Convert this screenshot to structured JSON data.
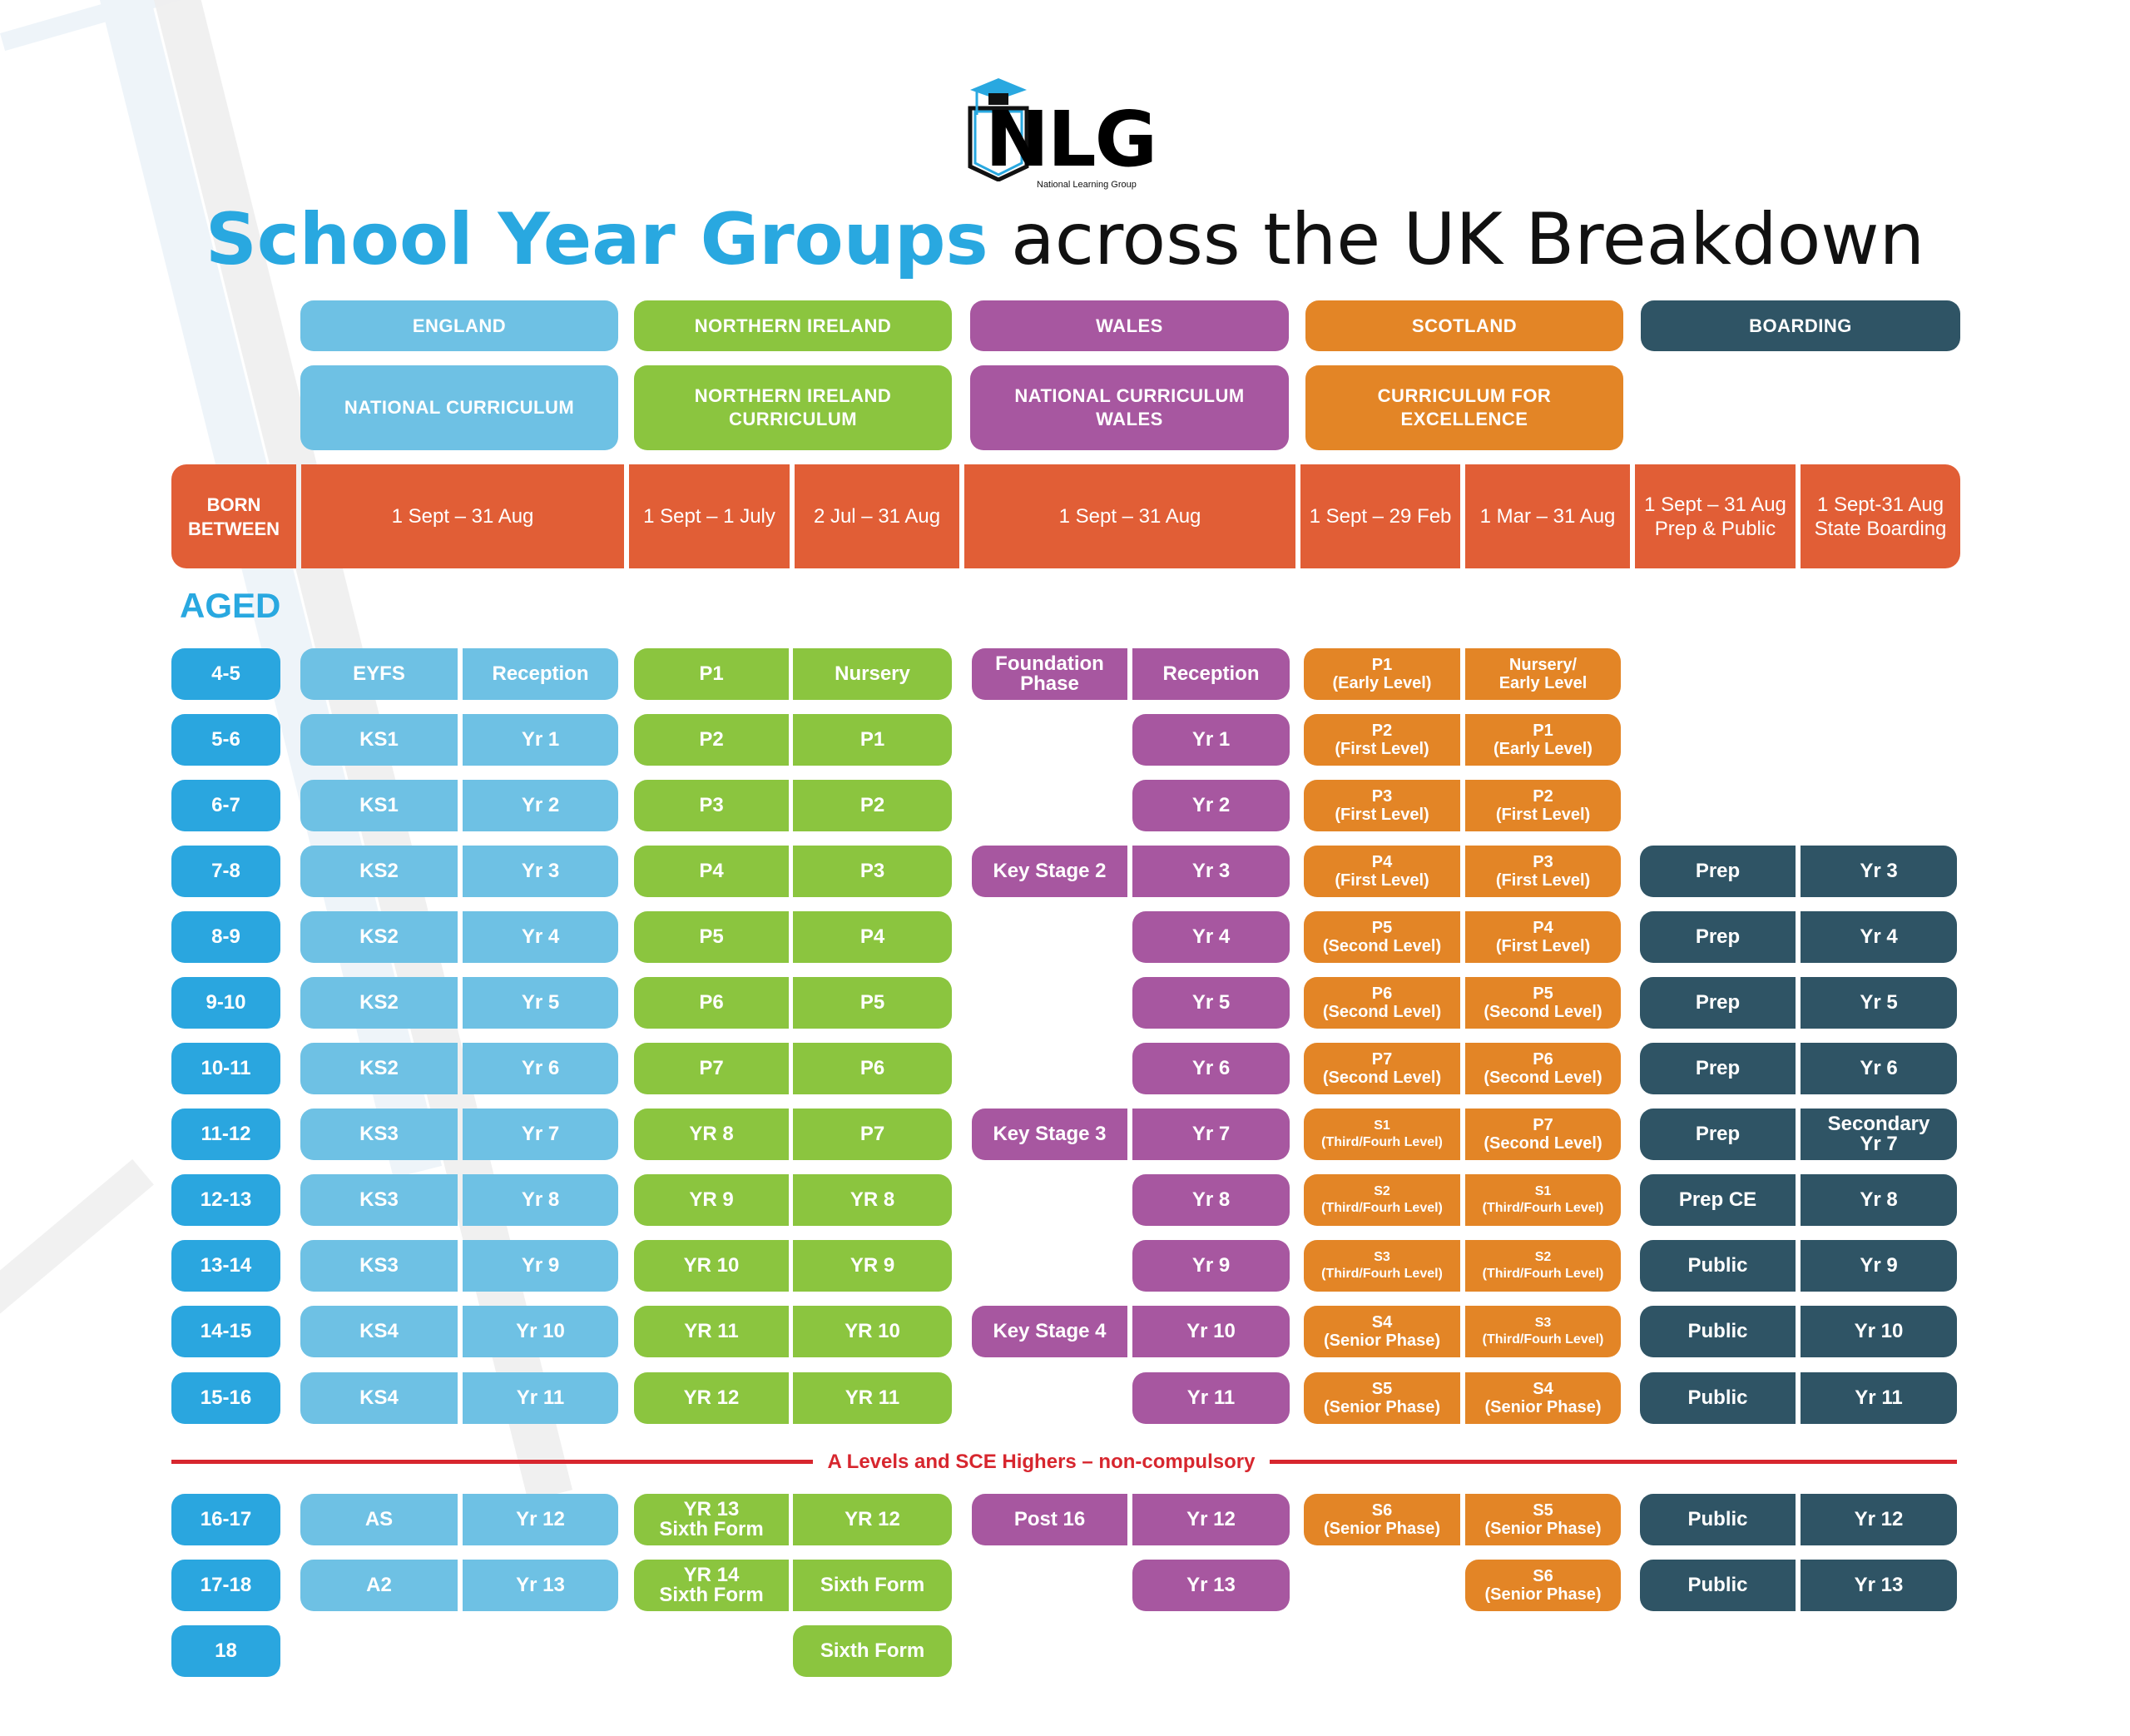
{
  "logo": {
    "word": "NLG",
    "subtitle": "National Learning Group"
  },
  "title": {
    "highlight": "School Year Groups",
    "rest": " across the UK Breakdown"
  },
  "regions": [
    {
      "name": "ENGLAND",
      "curriculum": "NATIONAL CURRICULUM",
      "color": "#6EC1E4"
    },
    {
      "name": "NORTHERN IRELAND",
      "curriculum": "NORTHERN IRELAND\nCURRICULUM",
      "color": "#8BC53F"
    },
    {
      "name": "WALES",
      "curriculum": "NATIONAL CURRICULUM\nWALES",
      "color": "#A757A0"
    },
    {
      "name": "SCOTLAND",
      "curriculum": "CURRICULUM FOR\nEXCELLENCE",
      "color": "#E38526"
    },
    {
      "name": "BOARDING",
      "curriculum": "",
      "color": "#2F5465"
    }
  ],
  "born_between": {
    "label": "BORN\nBETWEEN",
    "ranges": [
      "1 Sept – 31 Aug",
      "1 Sept – 1 July",
      "2 Jul – 31 Aug",
      "1 Sept – 31 Aug",
      "1 Sept – 29 Feb",
      "1 Mar – 31 Aug",
      "1 Sept – 31 Aug\nPrep & Public",
      "1 Sept-31 Aug\nState Boarding"
    ],
    "color": "#E15E36"
  },
  "aged_label": "AGED",
  "divider": {
    "label": "A Levels and SCE Highers – non-compulsory",
    "color": "#D7262E"
  },
  "rows": [
    {
      "age": "4-5",
      "eng": [
        "EYFS",
        "Reception"
      ],
      "ni": [
        "P1",
        "Nursery"
      ],
      "wal": [
        "Foundation\nPhase",
        "Reception"
      ],
      "sco": [
        "P1\n(Early Level)",
        "Nursery/\nEarly Level"
      ],
      "brd": [
        "",
        ""
      ]
    },
    {
      "age": "5-6",
      "eng": [
        "KS1",
        "Yr 1"
      ],
      "ni": [
        "P2",
        "P1"
      ],
      "wal": [
        "",
        "Yr 1"
      ],
      "sco": [
        "P2\n(First Level)",
        "P1\n(Early Level)"
      ],
      "brd": [
        "",
        ""
      ]
    },
    {
      "age": "6-7",
      "eng": [
        "KS1",
        "Yr 2"
      ],
      "ni": [
        "P3",
        "P2"
      ],
      "wal": [
        "",
        "Yr 2"
      ],
      "sco": [
        "P3\n(First Level)",
        "P2\n(First Level)"
      ],
      "brd": [
        "",
        ""
      ]
    },
    {
      "age": "7-8",
      "eng": [
        "KS2",
        "Yr 3"
      ],
      "ni": [
        "P4",
        "P3"
      ],
      "wal": [
        "Key Stage 2",
        "Yr 3"
      ],
      "sco": [
        "P4\n(First Level)",
        "P3\n(First Level)"
      ],
      "brd": [
        "Prep",
        "Yr 3"
      ]
    },
    {
      "age": "8-9",
      "eng": [
        "KS2",
        "Yr 4"
      ],
      "ni": [
        "P5",
        "P4"
      ],
      "wal": [
        "",
        "Yr 4"
      ],
      "sco": [
        "P5\n(Second Level)",
        "P4\n(First Level)"
      ],
      "brd": [
        "Prep",
        "Yr 4"
      ]
    },
    {
      "age": "9-10",
      "eng": [
        "KS2",
        "Yr 5"
      ],
      "ni": [
        "P6",
        "P5"
      ],
      "wal": [
        "",
        "Yr 5"
      ],
      "sco": [
        "P6\n(Second Level)",
        "P5\n(Second Level)"
      ],
      "brd": [
        "Prep",
        "Yr 5"
      ]
    },
    {
      "age": "10-11",
      "eng": [
        "KS2",
        "Yr 6"
      ],
      "ni": [
        "P7",
        "P6"
      ],
      "wal": [
        "",
        "Yr 6"
      ],
      "sco": [
        "P7\n(Second Level)",
        "P6\n(Second Level)"
      ],
      "brd": [
        "Prep",
        "Yr 6"
      ]
    },
    {
      "age": "11-12",
      "eng": [
        "KS3",
        "Yr 7"
      ],
      "ni": [
        "YR 8",
        "P7"
      ],
      "wal": [
        "Key Stage 3",
        "Yr 7"
      ],
      "sco": [
        "S1\n(Third/Fourh Level)",
        "P7\n(Second Level)"
      ],
      "brd": [
        "Prep",
        "Secondary\nYr 7"
      ]
    },
    {
      "age": "12-13",
      "eng": [
        "KS3",
        "Yr 8"
      ],
      "ni": [
        "YR 9",
        "YR 8"
      ],
      "wal": [
        "",
        "Yr 8"
      ],
      "sco": [
        "S2\n(Third/Fourh Level)",
        "S1\n(Third/Fourh Level)"
      ],
      "brd": [
        "Prep CE",
        "Yr 8"
      ]
    },
    {
      "age": "13-14",
      "eng": [
        "KS3",
        "Yr 9"
      ],
      "ni": [
        "YR 10",
        "YR 9"
      ],
      "wal": [
        "",
        "Yr 9"
      ],
      "sco": [
        "S3\n(Third/Fourh Level)",
        "S2\n(Third/Fourh Level)"
      ],
      "brd": [
        "Public",
        "Yr 9"
      ]
    },
    {
      "age": "14-15",
      "eng": [
        "KS4",
        "Yr 10"
      ],
      "ni": [
        "YR 11",
        "YR 10"
      ],
      "wal": [
        "Key Stage 4",
        "Yr 10"
      ],
      "sco": [
        "S4\n(Senior Phase)",
        "S3\n(Third/Fourh Level)"
      ],
      "brd": [
        "Public",
        "Yr 10"
      ]
    },
    {
      "age": "15-16",
      "eng": [
        "KS4",
        "Yr 11"
      ],
      "ni": [
        "YR 12",
        "YR 11"
      ],
      "wal": [
        "",
        "Yr 11"
      ],
      "sco": [
        "S5\n(Senior Phase)",
        "S4\n(Senior Phase)"
      ],
      "brd": [
        "Public",
        "Yr 11"
      ]
    },
    {
      "age": "16-17",
      "eng": [
        "AS",
        "Yr 12"
      ],
      "ni": [
        "YR 13\nSixth Form",
        "YR 12"
      ],
      "wal": [
        "Post 16",
        "Yr 12"
      ],
      "sco": [
        "S6\n(Senior Phase)",
        "S5\n(Senior Phase)"
      ],
      "brd": [
        "Public",
        "Yr 12"
      ]
    },
    {
      "age": "17-18",
      "eng": [
        "A2",
        "Yr 13"
      ],
      "ni": [
        "YR 14\nSixth Form",
        "Sixth Form"
      ],
      "wal": [
        "",
        "Yr 13"
      ],
      "sco": [
        "",
        "S6\n(Senior Phase)"
      ],
      "brd": [
        "Public",
        "Yr 13"
      ]
    },
    {
      "age": "18",
      "eng": [
        "",
        ""
      ],
      "ni": [
        "",
        "Sixth Form"
      ],
      "wal": [
        "",
        ""
      ],
      "sco": [
        "",
        ""
      ],
      "brd": [
        "",
        ""
      ]
    }
  ]
}
